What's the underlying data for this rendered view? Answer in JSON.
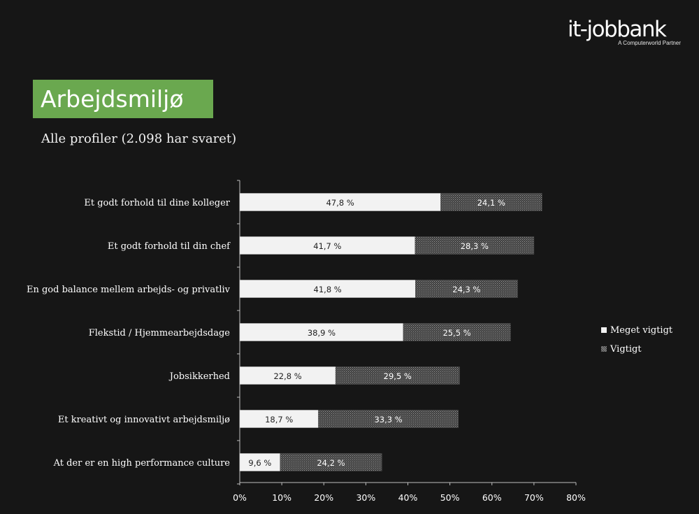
{
  "brand": {
    "logo_text": "it-jobbank",
    "logo_subtitle": "A Computerworld Partner"
  },
  "header": {
    "title": "Arbejdsmiljø",
    "subtitle": "Alle profiler (2.098 har svaret)"
  },
  "colors": {
    "title_bg": "#6aa84f",
    "background": "#161616",
    "series_meget": "#f2f2f2",
    "series_vigtigt": "#5a5a5a"
  },
  "chart_data": {
    "type": "bar",
    "orientation": "horizontal",
    "stacked": true,
    "categories": [
      "Et godt forhold til dine kolleger",
      "Et godt forhold til din chef",
      "En god balance mellem arbejds- og privatliv",
      "Flekstid / Hjemmearbejdsdage",
      "Jobsikkerhed",
      "Et kreativt og innovativt arbejdsmiljø",
      "At der er en high performance culture"
    ],
    "series": [
      {
        "name": "Meget vigtigt",
        "values": [
          47.8,
          41.7,
          41.8,
          38.9,
          22.8,
          18.7,
          9.6
        ],
        "labels": [
          "47,8 %",
          "41,7 %",
          "41,8 %",
          "38,9 %",
          "22,8 %",
          "18,7 %",
          "9,6 %"
        ]
      },
      {
        "name": "Vigtigt",
        "values": [
          24.1,
          28.3,
          24.3,
          25.5,
          29.5,
          33.3,
          24.2
        ],
        "labels": [
          "24,1 %",
          "28,3 %",
          "24,3 %",
          "25,5 %",
          "29,5 %",
          "33,3 %",
          "24,2 %"
        ]
      }
    ],
    "x_ticks": [
      "0%",
      "10%",
      "20%",
      "30%",
      "40%",
      "50%",
      "60%",
      "70%",
      "80%"
    ],
    "xlim": [
      0,
      80
    ],
    "grid": false,
    "legend_position": "right"
  }
}
